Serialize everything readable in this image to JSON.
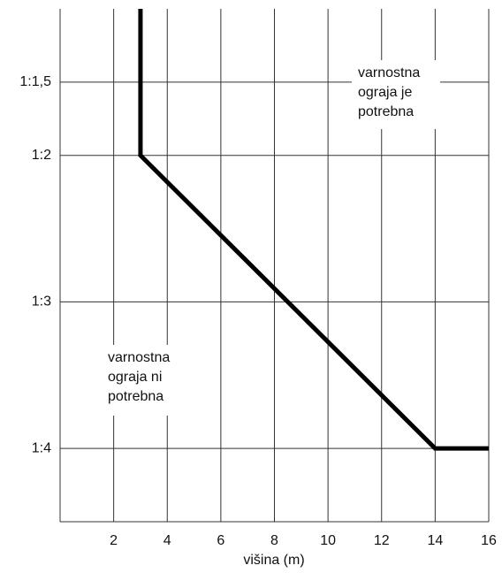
{
  "chart_data": {
    "type": "line",
    "x_label": "višina (m)",
    "xlim": [
      0,
      16
    ],
    "xticks": [
      2,
      4,
      6,
      8,
      10,
      12,
      14,
      16
    ],
    "ylim": [
      1,
      4.5
    ],
    "y_inverted": true,
    "yticks": [
      {
        "value": 1.5,
        "label": "1:1,5"
      },
      {
        "value": 2,
        "label": "1:2"
      },
      {
        "value": 3,
        "label": "1:3"
      },
      {
        "value": 4,
        "label": "1:4"
      }
    ],
    "grid": true,
    "series": [
      {
        "color": "#000000",
        "x": [
          3,
          3,
          14,
          16
        ],
        "values": [
          1,
          2,
          4,
          4
        ]
      }
    ],
    "annotations": [
      {
        "lines": [
          "varnostna",
          "ograja je",
          "potrebna"
        ]
      },
      {
        "lines": [
          "varnostna",
          "ograja ni",
          "potrebna"
        ]
      }
    ]
  }
}
